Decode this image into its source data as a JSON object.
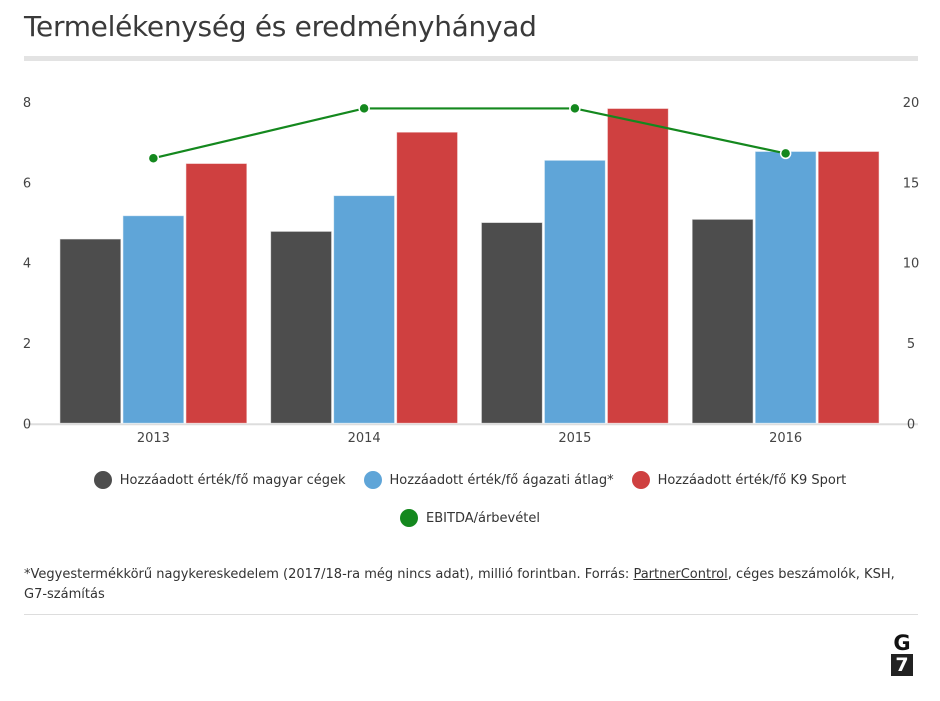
{
  "title": "Termelékenység és eredményhányad",
  "chart_data": {
    "type": "bar",
    "title": "Termelékenység és eredményhányad",
    "categories": [
      "2013",
      "2014",
      "2015",
      "2016"
    ],
    "y_left": {
      "range": [
        0,
        8
      ],
      "ticks": [
        0,
        2,
        4,
        6,
        8
      ]
    },
    "y_right": {
      "range": [
        0,
        20
      ],
      "ticks": [
        0,
        5,
        10,
        15,
        20
      ]
    },
    "grid": false,
    "legend_position": "bottom",
    "series": [
      {
        "name": "Hozzáadott érték/fő magyar cégek",
        "type": "bar",
        "axis": "left",
        "color": "#4d4d4d",
        "values": [
          4.59,
          4.78,
          5.0,
          5.08
        ]
      },
      {
        "name": "Hozzáadott érték/fő ágazati átlag*",
        "type": "bar",
        "axis": "left",
        "color": "#5fa5d8",
        "values": [
          5.17,
          5.67,
          6.55,
          6.77
        ]
      },
      {
        "name": "Hozzáadott érték/fő K9 Sport",
        "type": "bar",
        "axis": "left",
        "color": "#cf4040",
        "values": [
          6.47,
          7.25,
          7.84,
          6.77
        ]
      },
      {
        "name": "EBITDA/árbevétel",
        "type": "line",
        "axis": "right",
        "color": "#14881e",
        "values": [
          16.5,
          19.6,
          19.6,
          16.8
        ]
      }
    ]
  },
  "note": {
    "before": "*Vegyestermékkörű nagykereskedelem (2017/18-ra még nincs adat), millió forintban. Forrás: ",
    "link": "PartnerControl",
    "after": ", céges beszámolók, KSH, G7-számítás"
  },
  "logo": {
    "top": "G",
    "bottom": "7"
  }
}
